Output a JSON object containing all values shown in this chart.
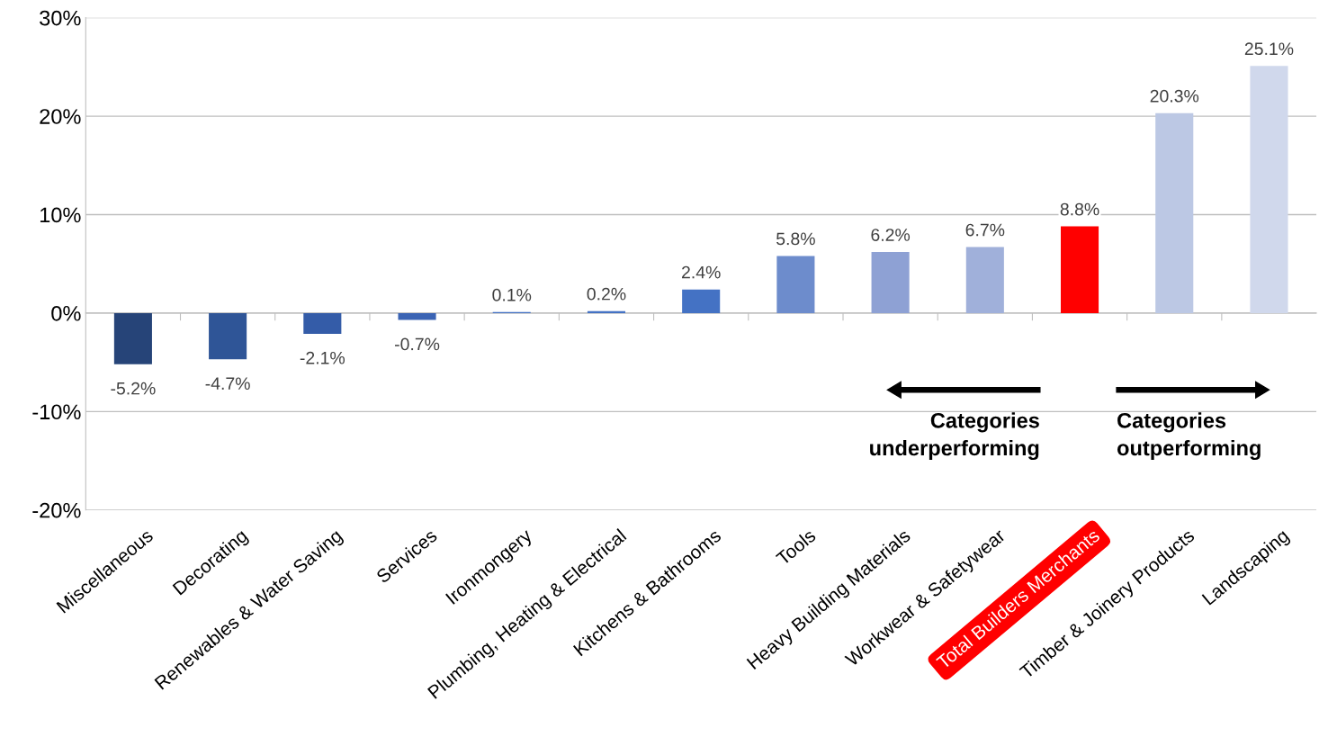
{
  "chart_data": {
    "type": "bar",
    "categories": [
      "Miscellaneous",
      "Decorating",
      "Renewables & Water Saving",
      "Services",
      "Ironmongery",
      "Plumbing, Heating & Electrical",
      "Kitchens & Bathrooms",
      "Tools",
      "Heavy Building Materials",
      "Workwear & Safetywear",
      "Total Builders Merchants",
      "Timber & Joinery Products",
      "Landscaping"
    ],
    "values": [
      -5.2,
      -4.7,
      -2.1,
      -0.7,
      0.1,
      0.2,
      2.4,
      5.8,
      6.2,
      6.7,
      8.8,
      20.3,
      25.1
    ],
    "value_labels": [
      "-5.2%",
      "-4.7%",
      "-2.1%",
      "-0.7%",
      "0.1%",
      "0.2%",
      "2.4%",
      "5.8%",
      "6.2%",
      "6.7%",
      "8.8%",
      "20.3%",
      "25.1%"
    ],
    "colors": [
      "#264478",
      "#2f5597",
      "#345ca8",
      "#3b64b4",
      "#4472c4",
      "#4472c4",
      "#4472c4",
      "#6d8ccc",
      "#8ea1d4",
      "#a0b0da",
      "#ff0000",
      "#bcc8e4",
      "#d0d8ec"
    ],
    "ylim": [
      -20,
      30
    ],
    "yticks": [
      {
        "value": -20,
        "label": "-20%"
      },
      {
        "value": -10,
        "label": "-10%"
      },
      {
        "value": 0,
        "label": "0%"
      },
      {
        "value": 10,
        "label": "10%"
      },
      {
        "value": 20,
        "label": "20%"
      },
      {
        "value": 30,
        "label": "30%"
      }
    ],
    "grid": "y",
    "annotations": [
      "Categories\nunderperforming",
      "Categories\noutperforming"
    ]
  }
}
